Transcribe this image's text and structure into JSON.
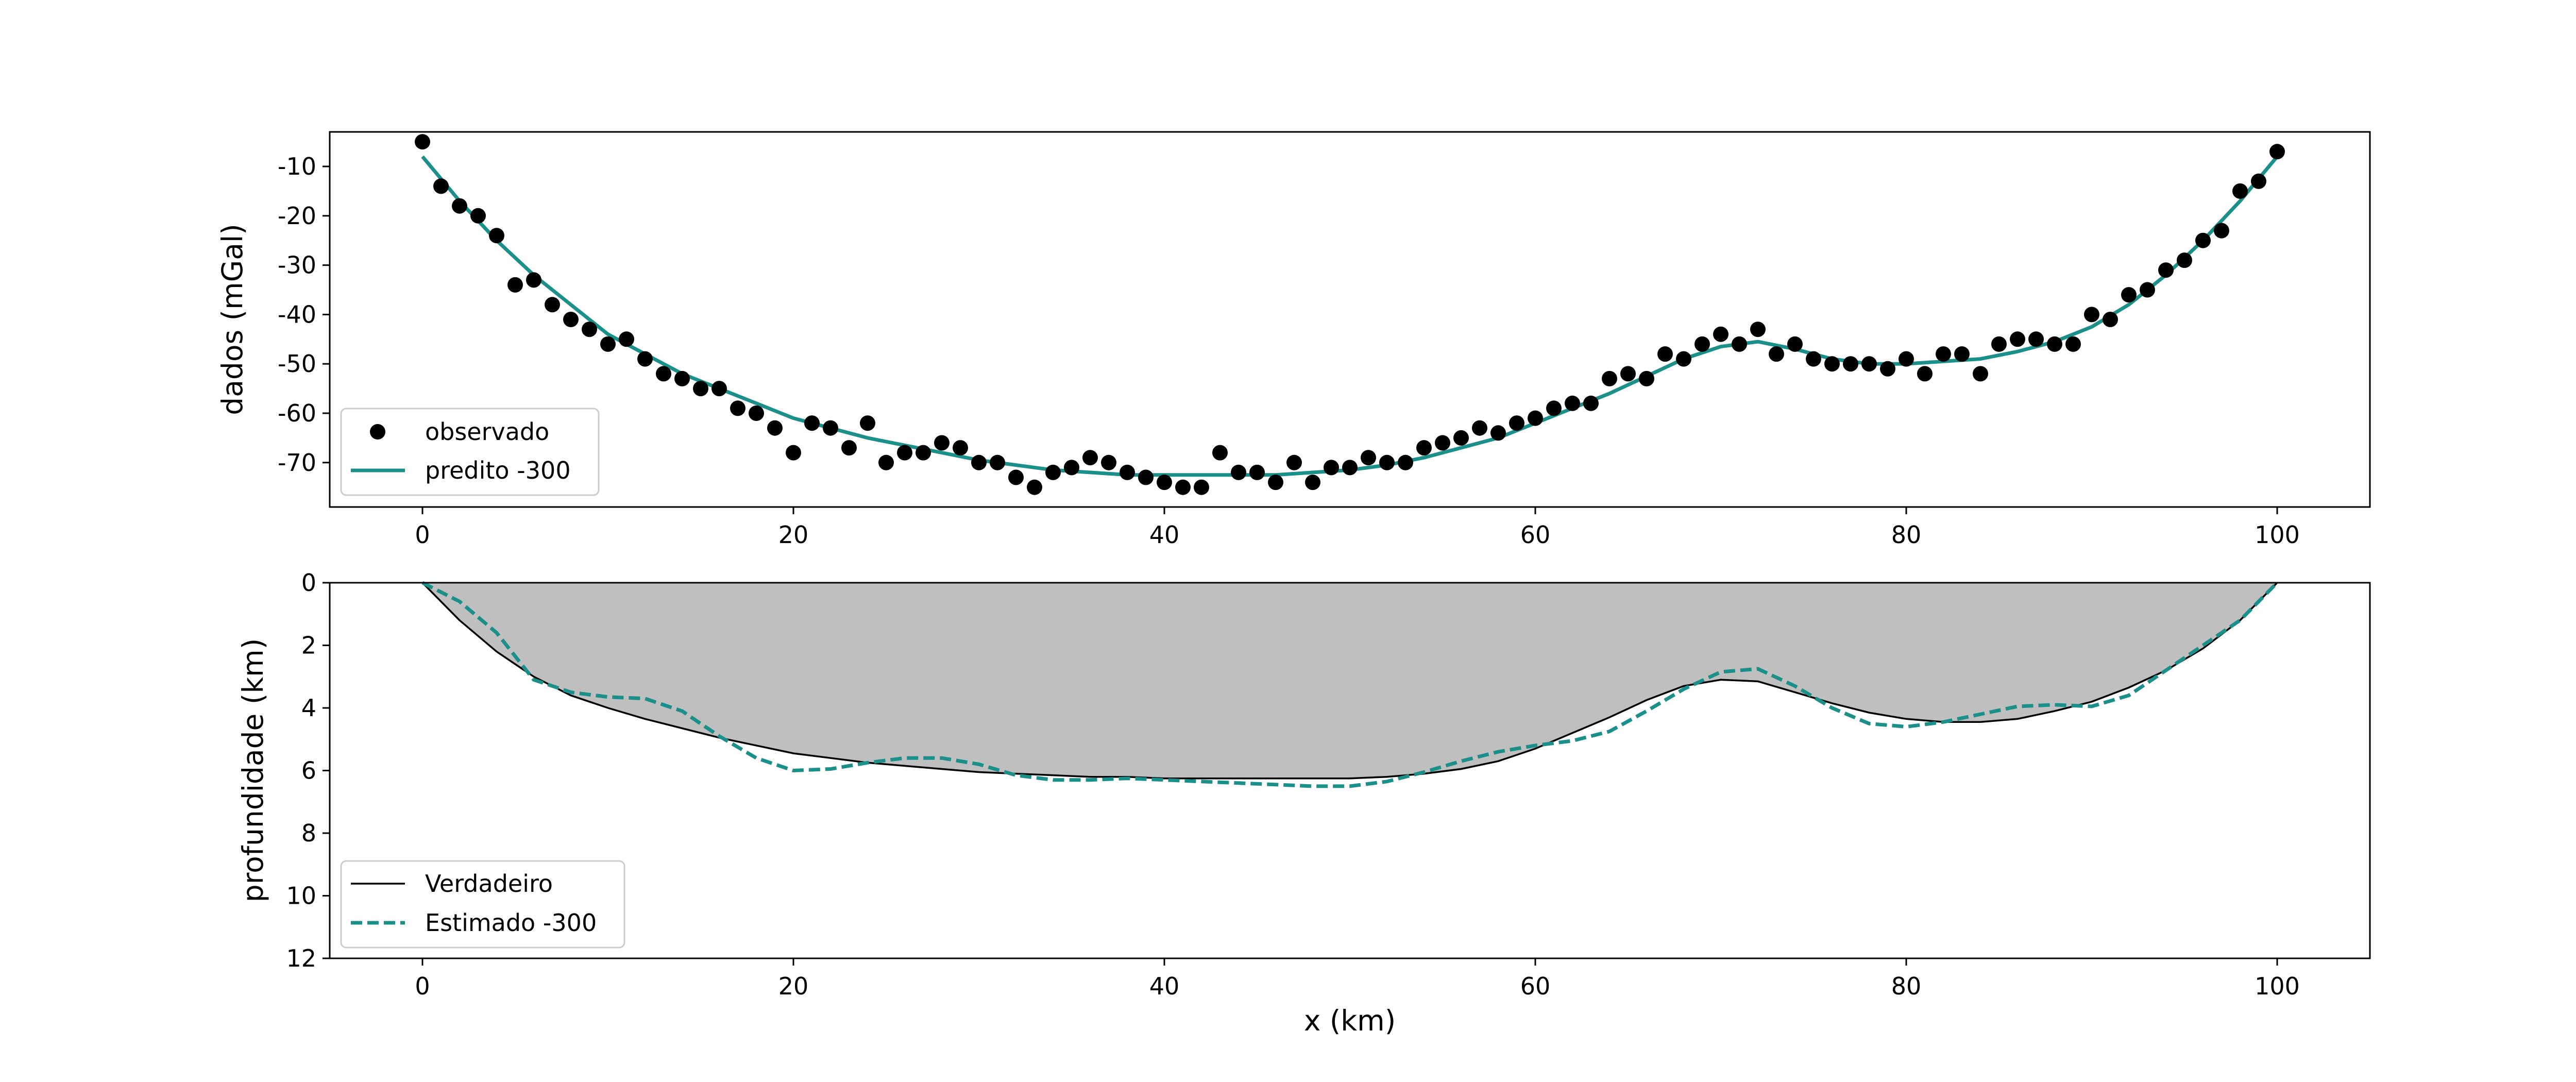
{
  "colors": {
    "observed": "#000000",
    "predicted": "#1b8f8a",
    "true_line": "#000000",
    "estimated": "#1b8f8a",
    "fill": "#bfbfbf"
  },
  "chart_data": [
    {
      "type": "scatter",
      "xlabel": "",
      "ylabel": "dados (mGal)",
      "xlim": [
        -5,
        105
      ],
      "ylim": [
        -79,
        -3
      ],
      "xticks": [
        0,
        20,
        40,
        60,
        80,
        100
      ],
      "yticks": [
        -70,
        -60,
        -50,
        -40,
        -30,
        -20,
        -10
      ],
      "legend": {
        "placement": "lower-left",
        "entries": [
          "observado",
          "predito -300"
        ]
      },
      "series": [
        {
          "name": "observado",
          "style": "markers",
          "x": [
            0,
            1,
            2,
            3,
            4,
            5,
            6,
            7,
            8,
            9,
            10,
            11,
            12,
            13,
            14,
            15,
            16,
            17,
            18,
            19,
            20,
            21,
            22,
            23,
            24,
            25,
            26,
            27,
            28,
            29,
            30,
            31,
            32,
            33,
            34,
            35,
            36,
            37,
            38,
            39,
            40,
            41,
            42,
            43,
            44,
            45,
            46,
            47,
            48,
            49,
            50,
            51,
            52,
            53,
            54,
            55,
            56,
            57,
            58,
            59,
            60,
            61,
            62,
            63,
            64,
            65,
            66,
            67,
            68,
            69,
            70,
            71,
            72,
            73,
            74,
            75,
            76,
            77,
            78,
            79,
            80,
            81,
            82,
            83,
            84,
            85,
            86,
            87,
            88,
            89,
            90,
            91,
            92,
            93,
            94,
            95,
            96,
            97,
            98,
            99,
            100
          ],
          "y": [
            -5,
            -14,
            -18,
            -20,
            -24,
            -34,
            -33,
            -38,
            -41,
            -43,
            -46,
            -45,
            -49,
            -52,
            -53,
            -55,
            -55,
            -59,
            -60,
            -63,
            -68,
            -62,
            -63,
            -67,
            -62,
            -70,
            -68,
            -68,
            -66,
            -67,
            -70,
            -70,
            -73,
            -75,
            -72,
            -71,
            -69,
            -70,
            -72,
            -73,
            -74,
            -75,
            -75,
            -68,
            -72,
            -72,
            -74,
            -70,
            -74,
            -71,
            -71,
            -69,
            -70,
            -70,
            -67,
            -66,
            -65,
            -63,
            -64,
            -62,
            -61,
            -59,
            -58,
            -58,
            -53,
            -52,
            -53,
            -48,
            -49,
            -46,
            -44,
            -46,
            -43,
            -48,
            -46,
            -49,
            -50,
            -50,
            -50,
            -51,
            -49,
            -52,
            -48,
            -48,
            -52,
            -46,
            -45,
            -45,
            -46,
            -46,
            -40,
            -41,
            -36,
            -35,
            -31,
            -29,
            -25,
            -23,
            -15,
            -13,
            -7
          ]
        },
        {
          "name": "predito -300",
          "style": "line",
          "x": [
            0,
            2,
            4,
            6,
            8,
            10,
            12,
            14,
            16,
            18,
            20,
            22,
            24,
            26,
            28,
            30,
            32,
            34,
            36,
            38,
            40,
            42,
            44,
            46,
            48,
            50,
            52,
            54,
            56,
            58,
            60,
            62,
            64,
            66,
            68,
            70,
            72,
            74,
            76,
            78,
            80,
            82,
            84,
            86,
            88,
            90,
            92,
            94,
            96,
            98,
            100
          ],
          "y": [
            -8,
            -17,
            -25,
            -32,
            -38,
            -44,
            -48,
            -52,
            -55,
            -58,
            -61,
            -63,
            -65,
            -66.5,
            -68,
            -69.5,
            -70.5,
            -71.5,
            -72,
            -72.5,
            -72.5,
            -72.5,
            -72.5,
            -72.5,
            -72,
            -71.5,
            -70.5,
            -69,
            -67,
            -65,
            -62,
            -59,
            -56,
            -52.5,
            -49,
            -46.5,
            -45.5,
            -47,
            -49,
            -50,
            -50,
            -49.5,
            -49,
            -47.5,
            -45.5,
            -42.5,
            -38,
            -32,
            -25,
            -17,
            -8
          ]
        }
      ]
    },
    {
      "type": "line",
      "xlabel": "x (km)",
      "ylabel": "profundidade (km)",
      "xlim": [
        -5,
        105
      ],
      "ylim": [
        12,
        0
      ],
      "xticks": [
        0,
        20,
        40,
        60,
        80,
        100
      ],
      "yticks": [
        0,
        2,
        4,
        6,
        8,
        10,
        12
      ],
      "legend": {
        "placement": "lower-left",
        "entries": [
          "Verdadeiro",
          "Estimado -300"
        ]
      },
      "series": [
        {
          "name": "Verdadeiro",
          "style": "solid",
          "fill_to_surface": true,
          "x": [
            0,
            2,
            4,
            6,
            8,
            10,
            12,
            14,
            16,
            18,
            20,
            22,
            24,
            26,
            28,
            30,
            32,
            34,
            36,
            38,
            40,
            42,
            44,
            46,
            48,
            50,
            52,
            54,
            56,
            58,
            60,
            62,
            64,
            66,
            68,
            70,
            72,
            74,
            76,
            78,
            80,
            82,
            84,
            86,
            88,
            90,
            92,
            94,
            96,
            98,
            100
          ],
          "y": [
            0,
            1.2,
            2.2,
            3,
            3.6,
            4,
            4.35,
            4.65,
            4.95,
            5.2,
            5.45,
            5.6,
            5.75,
            5.85,
            5.95,
            6.05,
            6.1,
            6.15,
            6.2,
            6.2,
            6.25,
            6.25,
            6.25,
            6.25,
            6.25,
            6.25,
            6.2,
            6.1,
            5.95,
            5.7,
            5.3,
            4.8,
            4.3,
            3.75,
            3.3,
            3.1,
            3.15,
            3.5,
            3.85,
            4.15,
            4.35,
            4.45,
            4.45,
            4.35,
            4.1,
            3.8,
            3.35,
            2.8,
            2.1,
            1.2,
            0
          ]
        },
        {
          "name": "Estimado -300",
          "style": "dashed",
          "x": [
            0,
            2,
            4,
            6,
            8,
            10,
            12,
            14,
            16,
            18,
            20,
            22,
            24,
            26,
            28,
            30,
            32,
            34,
            36,
            38,
            40,
            42,
            44,
            46,
            48,
            50,
            52,
            54,
            56,
            58,
            60,
            62,
            64,
            66,
            68,
            70,
            72,
            74,
            76,
            78,
            80,
            82,
            84,
            86,
            88,
            90,
            92,
            94,
            96,
            98,
            100
          ],
          "y": [
            0,
            0.6,
            1.6,
            3.1,
            3.5,
            3.65,
            3.7,
            4.1,
            4.9,
            5.6,
            6,
            5.95,
            5.75,
            5.6,
            5.6,
            5.8,
            6.15,
            6.3,
            6.3,
            6.25,
            6.3,
            6.35,
            6.4,
            6.45,
            6.5,
            6.5,
            6.35,
            6.05,
            5.7,
            5.4,
            5.2,
            5.05,
            4.75,
            4.1,
            3.4,
            2.85,
            2.75,
            3.3,
            4,
            4.5,
            4.6,
            4.45,
            4.2,
            3.95,
            3.9,
            3.95,
            3.6,
            2.8,
            2,
            1.2,
            0
          ]
        }
      ]
    }
  ]
}
